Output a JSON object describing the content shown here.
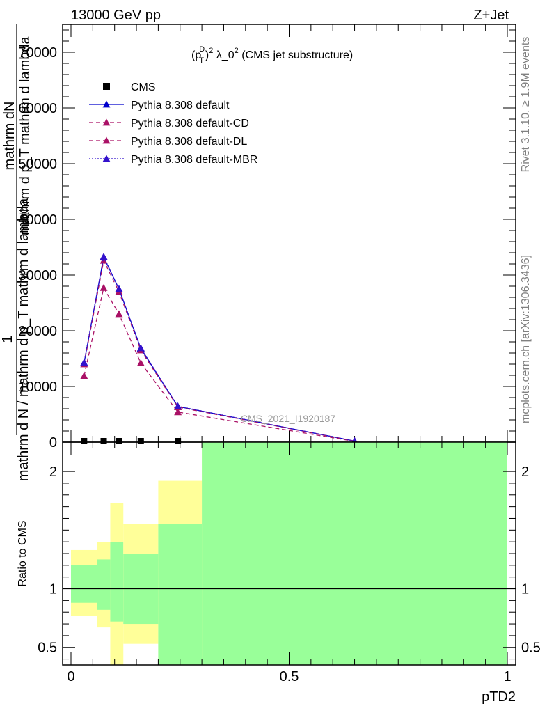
{
  "header": {
    "energy_label": "13000 GeV pp",
    "process_label": "Z+Jet"
  },
  "side_text": {
    "rivet": "Rivet 3.1.10, ≥ 1.9M events",
    "mcplots": "mcplots.cern.ch [arXiv:1306.3436]"
  },
  "chart_data": [
    {
      "type": "line",
      "title": "(p_T^D)^2 λ_0^2 (CMS jet substructure)",
      "title_parts": {
        "a": "(p",
        "sub": "T",
        "sup_d": "D",
        "b": ")",
        "sup2": "2",
        "c": " λ_0",
        "sup3": "2",
        "d": " (CMS jet substructure)"
      },
      "watermark": "CMS_2021_I1920187",
      "ylabel_parts": {
        "one": "1",
        "num": "mathrm dN",
        "den": "mathrm d p_T mathrm d lambda",
        "rest": "mathrm d N / mathrm d p_T mathrm d lambda",
        "T": "T"
      },
      "xlim": [
        0,
        1
      ],
      "ylim": [
        0,
        75000
      ],
      "yticks": [
        0,
        10000,
        20000,
        30000,
        40000,
        50000,
        60000,
        70000
      ],
      "ytick_labels": [
        "0",
        "10000",
        "20000",
        "30000",
        "40000",
        "50000",
        "60000",
        "70000"
      ],
      "legend_position": "top-left",
      "series": [
        {
          "name": "CMS",
          "color": "#000000",
          "marker": "square",
          "style": "none",
          "x": [
            0.03,
            0.075,
            0.11,
            0.16,
            0.245
          ],
          "y": [
            60,
            80,
            80,
            60,
            40
          ]
        },
        {
          "name": "Pythia 8.308 default",
          "color": "#0000cc",
          "marker": "triangle",
          "style": "solid",
          "x": [
            0.03,
            0.075,
            0.11,
            0.16,
            0.245,
            0.65
          ],
          "y": [
            14200,
            33200,
            27500,
            16800,
            6400,
            200
          ]
        },
        {
          "name": "Pythia 8.308 default-CD",
          "color": "#aa1166",
          "marker": "triangle",
          "style": "dashed",
          "x": [
            0.03,
            0.075,
            0.11,
            0.16,
            0.245,
            0.65
          ],
          "y": [
            11900,
            27700,
            23000,
            14200,
            5400,
            150
          ]
        },
        {
          "name": "Pythia 8.308 default-DL",
          "color": "#aa1166",
          "marker": "triangle",
          "style": "dashed",
          "x": [
            0.03,
            0.075,
            0.11,
            0.16,
            0.245,
            0.65
          ],
          "y": [
            14000,
            32600,
            27000,
            16500,
            6300,
            180
          ]
        },
        {
          "name": "Pythia 8.308 default-MBR",
          "color": "#3311cc",
          "marker": "triangle",
          "style": "dotted",
          "x": [
            0.03,
            0.075,
            0.11,
            0.16,
            0.245,
            0.65
          ],
          "y": [
            14300,
            33300,
            27500,
            16900,
            6450,
            200
          ]
        }
      ]
    },
    {
      "type": "area",
      "ylabel": "Ratio to CMS",
      "xlabel": "pTD2",
      "xlim": [
        0,
        1
      ],
      "ylim": [
        0.35,
        2.25
      ],
      "reference_line": 1,
      "yticks": [
        0.5,
        1,
        2
      ],
      "ytick_labels": [
        "0.5",
        "1",
        "2"
      ],
      "xticks": [
        0,
        0.5,
        1
      ],
      "xtick_labels": [
        "0",
        "0.5",
        "1"
      ],
      "bands": {
        "bin_edges": [
          0,
          0.06,
          0.09,
          0.12,
          0.2,
          0.3,
          1.0
        ],
        "stat_total_color": "#ffff99",
        "stat_color": "#99ff99",
        "total_high": [
          1.33,
          1.4,
          1.73,
          1.55,
          1.92,
          3.5
        ],
        "total_low": [
          0.77,
          0.67,
          0.25,
          0.53,
          0.25,
          0.25
        ],
        "stat_high": [
          1.2,
          1.25,
          1.4,
          1.3,
          1.55,
          3.0
        ],
        "stat_low": [
          0.88,
          0.82,
          0.72,
          0.7,
          0.28,
          0.28
        ]
      }
    }
  ]
}
